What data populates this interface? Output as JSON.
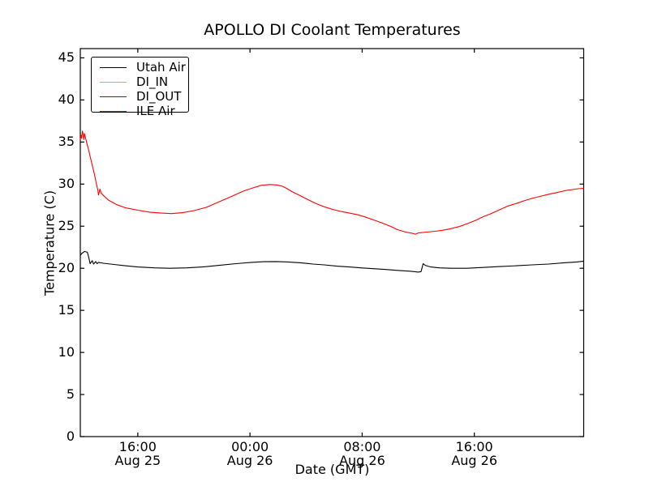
{
  "window": {
    "background": "#ffffff"
  },
  "chart_data": {
    "type": "line",
    "title": "APOLLO DI Coolant Temperatures",
    "xlabel": "Date (GMT)",
    "ylabel": "Temperature (C)",
    "x_unit": "hours since Aug 25 00:00 GMT",
    "xlim": [
      11.9,
      47.8
    ],
    "ylim": [
      0,
      46.1
    ],
    "yticks": [
      0,
      5,
      10,
      15,
      20,
      25,
      30,
      35,
      40,
      45
    ],
    "xticks": [
      {
        "t": 16,
        "time": "16:00",
        "date": "Aug 25"
      },
      {
        "t": 24,
        "time": "00:00",
        "date": "Aug 26"
      },
      {
        "t": 32,
        "time": "08:00",
        "date": "Aug 26"
      },
      {
        "t": 40,
        "time": "16:00",
        "date": "Aug 26"
      }
    ],
    "grid": false,
    "legend_position": "upper left",
    "axis_color": "#000000",
    "series": [
      {
        "name": "Utah Air",
        "color": "#000000",
        "points": [
          [
            11.9,
            21.5
          ],
          [
            12.0,
            21.75
          ],
          [
            12.2,
            22.0
          ],
          [
            12.4,
            21.9
          ],
          [
            12.5,
            21.3
          ],
          [
            12.6,
            20.55
          ],
          [
            12.75,
            20.9
          ],
          [
            12.85,
            20.5
          ],
          [
            13.0,
            20.8
          ],
          [
            13.1,
            20.55
          ],
          [
            13.2,
            20.7
          ],
          [
            13.55,
            20.6
          ],
          [
            14.3,
            20.45
          ],
          [
            15.1,
            20.3
          ],
          [
            16.0,
            20.15
          ],
          [
            17.2,
            20.05
          ],
          [
            18.3,
            20.0
          ],
          [
            19.5,
            20.05
          ],
          [
            20.6,
            20.15
          ],
          [
            21.8,
            20.35
          ],
          [
            23.0,
            20.55
          ],
          [
            24.1,
            20.7
          ],
          [
            25.0,
            20.78
          ],
          [
            25.9,
            20.8
          ],
          [
            26.7,
            20.75
          ],
          [
            27.6,
            20.65
          ],
          [
            28.5,
            20.5
          ],
          [
            29.3,
            20.4
          ],
          [
            30.2,
            20.25
          ],
          [
            31.1,
            20.15
          ],
          [
            31.9,
            20.05
          ],
          [
            32.8,
            19.95
          ],
          [
            33.7,
            19.85
          ],
          [
            34.5,
            19.75
          ],
          [
            35.4,
            19.65
          ],
          [
            36.0,
            19.55
          ],
          [
            36.2,
            19.6
          ],
          [
            36.35,
            20.55
          ],
          [
            36.5,
            20.35
          ],
          [
            36.9,
            20.15
          ],
          [
            37.5,
            20.05
          ],
          [
            38.3,
            20.0
          ],
          [
            39.5,
            20.0
          ],
          [
            40.6,
            20.1
          ],
          [
            41.8,
            20.2
          ],
          [
            43.0,
            20.3
          ],
          [
            44.1,
            20.4
          ],
          [
            45.3,
            20.5
          ],
          [
            46.4,
            20.65
          ],
          [
            47.3,
            20.75
          ],
          [
            47.8,
            20.85
          ]
        ]
      },
      {
        "name": "DI_IN",
        "color": "#ffa500",
        "points": []
      },
      {
        "name": "DI_OUT",
        "color": "#800080",
        "points": []
      },
      {
        "name": "ILE Air",
        "color": "#ff0000",
        "points": [
          [
            11.9,
            35.3
          ],
          [
            11.95,
            35.8
          ],
          [
            12.0,
            35.45
          ],
          [
            12.05,
            36.3
          ],
          [
            12.1,
            35.9
          ],
          [
            12.15,
            35.3
          ],
          [
            12.2,
            36.0
          ],
          [
            12.3,
            35.3
          ],
          [
            12.5,
            34.0
          ],
          [
            12.7,
            32.6
          ],
          [
            12.9,
            31.2
          ],
          [
            13.05,
            30.0
          ],
          [
            13.15,
            29.3
          ],
          [
            13.2,
            28.7
          ],
          [
            13.3,
            29.4
          ],
          [
            13.4,
            28.9
          ],
          [
            13.55,
            28.65
          ],
          [
            13.9,
            28.1
          ],
          [
            14.5,
            27.55
          ],
          [
            15.1,
            27.2
          ],
          [
            16.0,
            26.9
          ],
          [
            16.9,
            26.65
          ],
          [
            17.7,
            26.55
          ],
          [
            18.4,
            26.5
          ],
          [
            19.2,
            26.6
          ],
          [
            20.0,
            26.85
          ],
          [
            20.9,
            27.25
          ],
          [
            21.8,
            27.9
          ],
          [
            22.7,
            28.55
          ],
          [
            23.5,
            29.15
          ],
          [
            24.2,
            29.55
          ],
          [
            24.8,
            29.85
          ],
          [
            25.4,
            29.95
          ],
          [
            25.9,
            29.9
          ],
          [
            26.3,
            29.75
          ],
          [
            26.6,
            29.5
          ],
          [
            27.0,
            29.1
          ],
          [
            27.6,
            28.6
          ],
          [
            28.2,
            28.1
          ],
          [
            28.7,
            27.7
          ],
          [
            29.3,
            27.3
          ],
          [
            29.9,
            27.0
          ],
          [
            30.5,
            26.75
          ],
          [
            31.1,
            26.55
          ],
          [
            31.7,
            26.35
          ],
          [
            32.2,
            26.1
          ],
          [
            32.8,
            25.75
          ],
          [
            33.4,
            25.4
          ],
          [
            34.0,
            25.0
          ],
          [
            34.5,
            24.6
          ],
          [
            35.1,
            24.3
          ],
          [
            35.6,
            24.15
          ],
          [
            35.8,
            24.05
          ],
          [
            36.0,
            24.2
          ],
          [
            36.6,
            24.3
          ],
          [
            37.2,
            24.4
          ],
          [
            37.7,
            24.5
          ],
          [
            38.3,
            24.7
          ],
          [
            38.9,
            24.95
          ],
          [
            39.5,
            25.3
          ],
          [
            40.1,
            25.7
          ],
          [
            40.6,
            26.1
          ],
          [
            41.2,
            26.5
          ],
          [
            41.8,
            26.95
          ],
          [
            42.4,
            27.4
          ],
          [
            43.0,
            27.7
          ],
          [
            43.5,
            28.0
          ],
          [
            44.1,
            28.3
          ],
          [
            44.7,
            28.55
          ],
          [
            45.3,
            28.8
          ],
          [
            45.9,
            29.0
          ],
          [
            46.4,
            29.2
          ],
          [
            47.0,
            29.35
          ],
          [
            47.4,
            29.45
          ],
          [
            47.8,
            29.5
          ]
        ]
      }
    ]
  }
}
